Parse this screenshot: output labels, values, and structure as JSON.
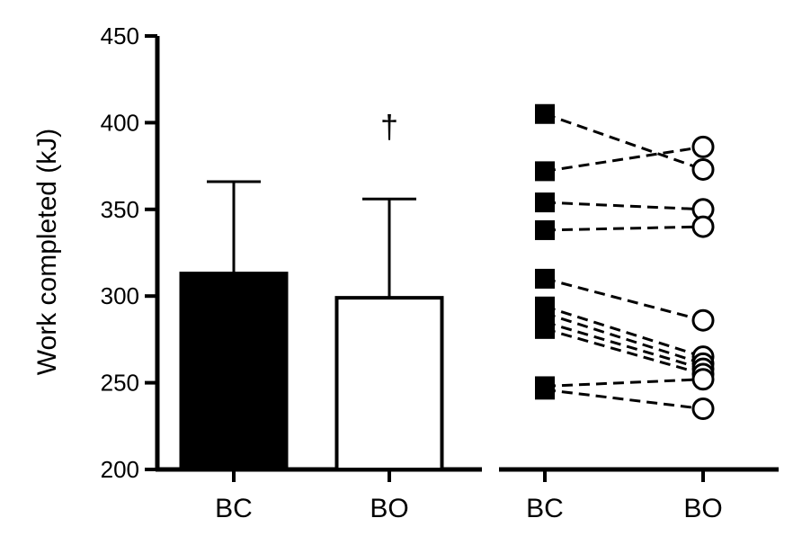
{
  "chart_data": [
    {
      "type": "bar",
      "ylabel": "Work completed (kJ)",
      "ylim": [
        200,
        450
      ],
      "yticks": [
        "200",
        "250",
        "300",
        "350",
        "400",
        "450"
      ],
      "categories": [
        "BC",
        "BO"
      ],
      "values": [
        313,
        299
      ],
      "error_upper": [
        366,
        356
      ],
      "bar_colors": [
        "#000000",
        "#ffffff"
      ],
      "annotation": "†",
      "annotation_category": "BO"
    },
    {
      "type": "scatter",
      "categories": [
        "BC",
        "BO"
      ],
      "paired_points": [
        {
          "BC": 405,
          "BO": 373
        },
        {
          "BC": 372,
          "BO": 386
        },
        {
          "BC": 354,
          "BO": 350
        },
        {
          "BC": 338,
          "BO": 340
        },
        {
          "BC": 310,
          "BO": 286
        },
        {
          "BC": 294,
          "BO": 265
        },
        {
          "BC": 290,
          "BO": 261
        },
        {
          "BC": 285,
          "BO": 258
        },
        {
          "BC": 281,
          "BO": 255
        },
        {
          "BC": 248,
          "BO": 252
        },
        {
          "BC": 246,
          "BO": 235
        }
      ],
      "markers": {
        "BC": "filled-square",
        "BO": "open-circle"
      },
      "line_style": "dashed"
    }
  ]
}
